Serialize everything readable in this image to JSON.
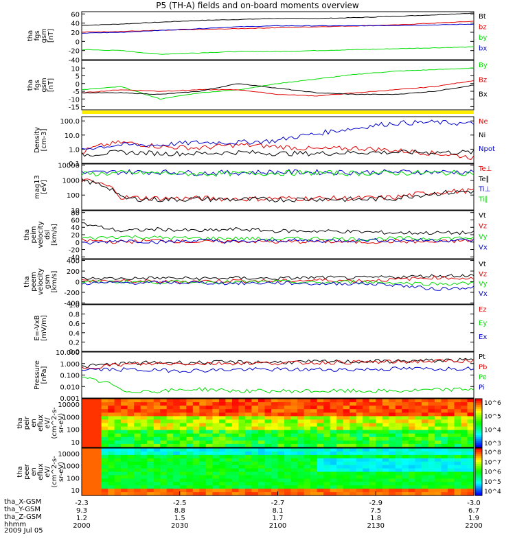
{
  "title": "P5 (TH-A) fields and on-board moments overview",
  "colors": {
    "black": "#000000",
    "red": "#e00000",
    "green": "#00dd00",
    "blue": "#0000cc",
    "yellow": "#ffee00",
    "bright_green": "#22ee22"
  },
  "chart_data": [
    {
      "type": "line",
      "ylabel": [
        "tha",
        "fgs",
        "gsm",
        "[nT]"
      ],
      "yticks": [
        -40,
        -20,
        0,
        20,
        40,
        60
      ],
      "ylim": [
        -40,
        65
      ],
      "series": [
        {
          "name": "Bt",
          "color": "#000000",
          "values": [
            35,
            38,
            42,
            46,
            48,
            50,
            50,
            52,
            55,
            58,
            62
          ]
        },
        {
          "name": "bz",
          "color": "#e00000",
          "values": [
            20,
            22,
            24,
            26,
            28,
            30,
            32,
            34,
            36,
            40,
            44
          ]
        },
        {
          "name": "by",
          "color": "#00dd00",
          "values": [
            -18,
            -20,
            -28,
            -25,
            -22,
            -22,
            -20,
            -18,
            -16,
            -14,
            -12
          ]
        },
        {
          "name": "bx",
          "color": "#0000cc",
          "values": [
            18,
            20,
            24,
            28,
            32,
            34,
            34,
            34,
            35,
            36,
            38
          ]
        }
      ]
    },
    {
      "type": "line",
      "ylabel": [
        "tha",
        "fgs",
        "gsm",
        "[nT]"
      ],
      "yticks": [
        -15,
        -10,
        -5,
        0,
        5,
        10
      ],
      "ylim": [
        -17,
        15
      ],
      "series": [
        {
          "name": "By",
          "color": "#00dd00",
          "values": [
            -4,
            -2,
            -10,
            -6,
            -4,
            0,
            3,
            6,
            8,
            9,
            10
          ]
        },
        {
          "name": "Bz",
          "color": "#e00000",
          "values": [
            -6,
            -4,
            -5,
            -4,
            -4,
            -7,
            -8,
            -6,
            -4,
            -2,
            2
          ]
        },
        {
          "name": "Bx",
          "color": "#000000",
          "values": [
            -6,
            -6,
            -7,
            -5,
            0,
            -3,
            -6,
            -7,
            -7,
            -5,
            -1
          ]
        }
      ]
    },
    {
      "type": "line",
      "ylabel": [
        "Density",
        "[cm-3]"
      ],
      "yticks": [
        "0.1",
        "1.0",
        "10.0",
        "100.0"
      ],
      "log": true,
      "ylim": [
        0.1,
        200
      ],
      "series": [
        {
          "name": "Ne",
          "color": "#e00000",
          "values": [
            0.5,
            3,
            1.5,
            1.2,
            2,
            1.5,
            1,
            1.2,
            0.8,
            0.5,
            0.25
          ]
        },
        {
          "name": "Ni",
          "color": "#000000",
          "values": [
            0.4,
            0.6,
            0.5,
            0.5,
            0.6,
            0.5,
            0.5,
            0.6,
            0.6,
            0.6,
            0.6
          ]
        },
        {
          "name": "Npot",
          "color": "#0000cc",
          "values": [
            1,
            2,
            2,
            3,
            3,
            4,
            12,
            30,
            70,
            80,
            60
          ]
        }
      ]
    },
    {
      "type": "line",
      "ylabel": [
        "mag13",
        "[eV]"
      ],
      "yticks": [
        "10",
        "100",
        "1000",
        "10000"
      ],
      "log": true,
      "ylim": [
        10,
        12000
      ],
      "series": [
        {
          "name": "Te⊥",
          "color": "#e00000",
          "values": [
            1000,
            70,
            60,
            60,
            55,
            60,
            60,
            60,
            70,
            150,
            200
          ]
        },
        {
          "name": "Te∥",
          "color": "#000000",
          "values": [
            900,
            60,
            50,
            55,
            50,
            50,
            55,
            50,
            60,
            130,
            180
          ]
        },
        {
          "name": "Ti⊥",
          "color": "#0000cc",
          "values": [
            3000,
            3500,
            3500,
            3000,
            3200,
            3500,
            3400,
            3300,
            3500,
            3500,
            3500
          ]
        },
        {
          "name": "Ti∥",
          "color": "#00dd00",
          "values": [
            2500,
            3000,
            3000,
            2600,
            2800,
            3000,
            3000,
            2900,
            3000,
            3100,
            3000
          ]
        }
      ]
    },
    {
      "type": "line",
      "ylabel": [
        "tha",
        "peim",
        "velocity",
        "dsl",
        "[km/s]"
      ],
      "yticks": [
        -40,
        -20,
        0,
        20,
        40,
        60,
        80
      ],
      "ylim": [
        -45,
        85
      ],
      "series": [
        {
          "name": "Vt",
          "color": "#000000",
          "values": [
            50,
            30,
            35,
            30,
            35,
            30,
            30,
            28,
            25,
            25,
            25
          ]
        },
        {
          "name": "Vz",
          "color": "#e00000",
          "values": [
            5,
            0,
            5,
            0,
            3,
            0,
            2,
            0,
            2,
            0,
            5
          ]
        },
        {
          "name": "Vy",
          "color": "#00dd00",
          "values": [
            10,
            15,
            12,
            10,
            10,
            8,
            10,
            8,
            10,
            10,
            12
          ]
        },
        {
          "name": "Vx",
          "color": "#0000cc",
          "values": [
            -5,
            5,
            0,
            5,
            0,
            5,
            3,
            5,
            5,
            5,
            5
          ]
        }
      ]
    },
    {
      "type": "line",
      "ylabel": [
        "tha",
        "peem",
        "velocity",
        "gsm",
        "[km/s]"
      ],
      "yticks": [
        -400,
        -200,
        0,
        200,
        400
      ],
      "ylim": [
        -420,
        420
      ],
      "series": [
        {
          "name": "Vt",
          "color": "#000000",
          "values": [
            60,
            60,
            70,
            60,
            70,
            60,
            80,
            70,
            90,
            110,
            120
          ]
        },
        {
          "name": "Vz",
          "color": "#e00000",
          "values": [
            20,
            10,
            0,
            10,
            20,
            10,
            30,
            20,
            40,
            80,
            60
          ]
        },
        {
          "name": "Vy",
          "color": "#00dd00",
          "values": [
            -10,
            0,
            -10,
            0,
            -10,
            0,
            -20,
            0,
            -20,
            -40,
            -30
          ]
        },
        {
          "name": "Vx",
          "color": "#0000cc",
          "values": [
            -30,
            -20,
            -20,
            -20,
            -30,
            -20,
            -40,
            -30,
            -60,
            -140,
            -100
          ]
        }
      ]
    },
    {
      "type": "line",
      "ylabel": [
        "E=-VxB",
        "[mV/m]"
      ],
      "yticks": [
        "0.0",
        "0.2",
        "0.4",
        "0.6",
        "0.8",
        "1.0"
      ],
      "ylim": [
        0,
        1
      ],
      "series": [
        {
          "name": "Ez",
          "color": "#e00000",
          "values": []
        },
        {
          "name": "Ey",
          "color": "#00dd00",
          "values": []
        },
        {
          "name": "Ex",
          "color": "#0000cc",
          "values": []
        }
      ]
    },
    {
      "type": "line",
      "ylabel": [
        "Pressure",
        "[nPa]"
      ],
      "yticks": [
        "0.001",
        "0.010",
        "0.100",
        "1.000",
        "10.000"
      ],
      "log": true,
      "ylim": [
        0.001,
        10
      ],
      "series": [
        {
          "name": "Pt",
          "color": "#000000",
          "values": [
            0.5,
            1,
            1.2,
            1.2,
            1.3,
            1.3,
            1.4,
            1.5,
            1.6,
            1.8,
            2
          ]
        },
        {
          "name": "Pb",
          "color": "#e00000",
          "values": [
            0.4,
            0.8,
            1,
            1,
            1.1,
            1.1,
            1.2,
            1.3,
            1.4,
            1.6,
            1.8
          ]
        },
        {
          "name": "Pe",
          "color": "#00dd00",
          "values": [
            0.05,
            0.004,
            0.004,
            0.006,
            0.004,
            0.004,
            0.004,
            0.004,
            0.004,
            0.005,
            0.006
          ]
        },
        {
          "name": "Pi",
          "color": "#0000cc",
          "values": [
            0.3,
            0.3,
            0.25,
            0.25,
            0.3,
            0.3,
            0.3,
            0.3,
            0.35,
            0.35,
            0.4
          ]
        }
      ]
    },
    {
      "type": "heatmap",
      "ylabel": [
        "tha",
        "peir",
        "en",
        "eflux",
        "eV/",
        "(cm^2-s-",
        "sr-eV)"
      ],
      "yticks": [
        "10",
        "100",
        "1000",
        "10000"
      ],
      "colorbar_ticks": [
        "10^3",
        "10^4",
        "10^5",
        "10^6"
      ]
    },
    {
      "type": "heatmap",
      "ylabel": [
        "tha",
        "peer",
        "en",
        "eflux",
        "eV/",
        "(cm^2-s-",
        "sr-eV)"
      ],
      "yticks": [
        "10",
        "100",
        "1000",
        "10000"
      ],
      "colorbar_ticks": [
        "10^4",
        "10^5",
        "10^6",
        "10^7",
        "10^8"
      ]
    }
  ],
  "xaxis": {
    "rows": [
      {
        "label": "tha_X-GSM",
        "values": [
          "-2.3",
          "-2.5",
          "-2.7",
          "-2.9",
          "-3.0"
        ]
      },
      {
        "label": "tha_Y-GSM",
        "values": [
          "9.3",
          "8.8",
          "8.1",
          "7.5",
          "6.7"
        ]
      },
      {
        "label": "tha_Z-GSM",
        "values": [
          "1.2",
          "1.5",
          "1.7",
          "1.8",
          "1.9"
        ]
      },
      {
        "label": "hhmm",
        "values": [
          "2000",
          "2030",
          "2100",
          "2130",
          "2200"
        ]
      }
    ],
    "date": "2009 Jul 05"
  }
}
